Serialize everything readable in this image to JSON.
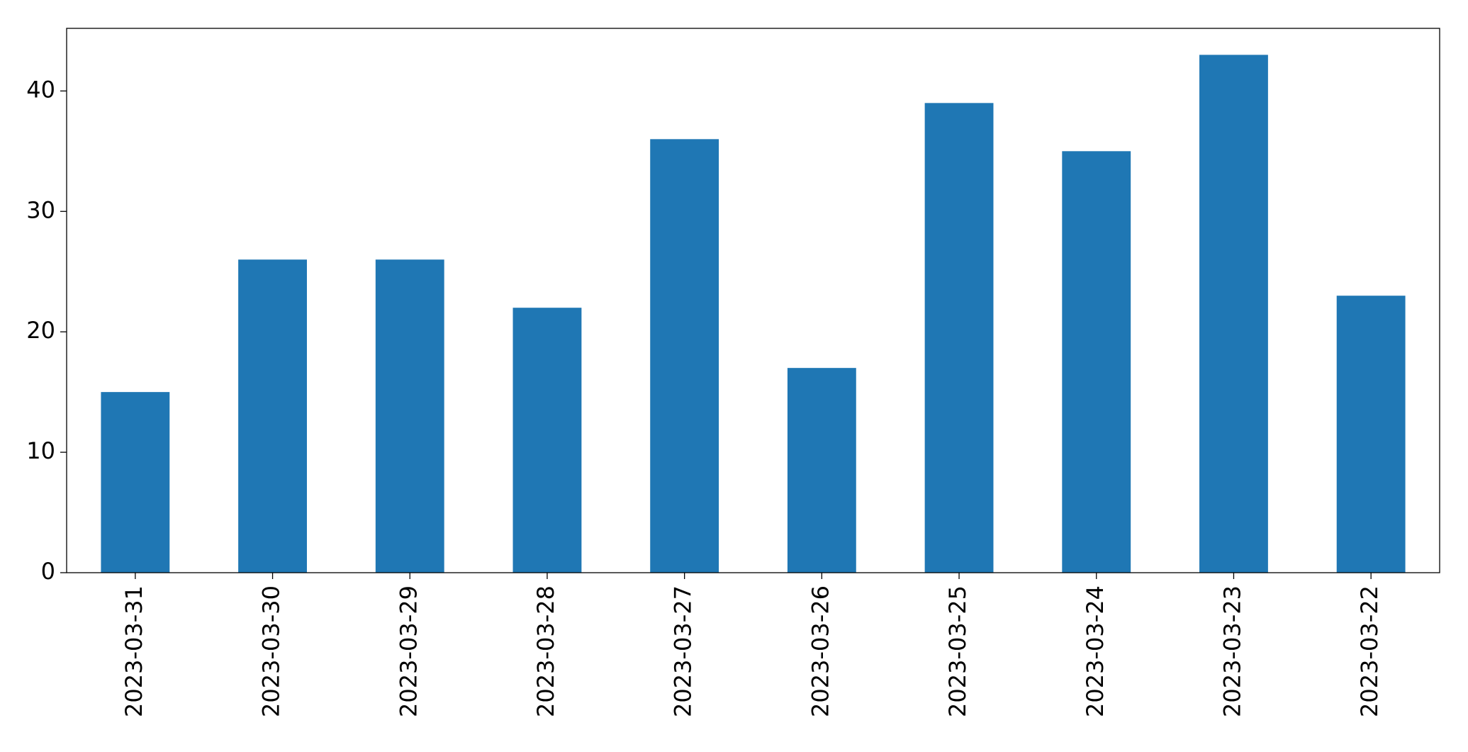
{
  "chart_data": {
    "type": "bar",
    "categories": [
      "2023-03-31",
      "2023-03-30",
      "2023-03-29",
      "2023-03-28",
      "2023-03-27",
      "2023-03-26",
      "2023-03-25",
      "2023-03-24",
      "2023-03-23",
      "2023-03-22"
    ],
    "values": [
      15,
      26,
      26,
      22,
      36,
      17,
      39,
      35,
      43,
      23
    ],
    "color": "#1f77b4",
    "ylim": [
      0,
      45.2
    ],
    "yticks": [
      0,
      10,
      20,
      30,
      40
    ],
    "grid": false
  }
}
